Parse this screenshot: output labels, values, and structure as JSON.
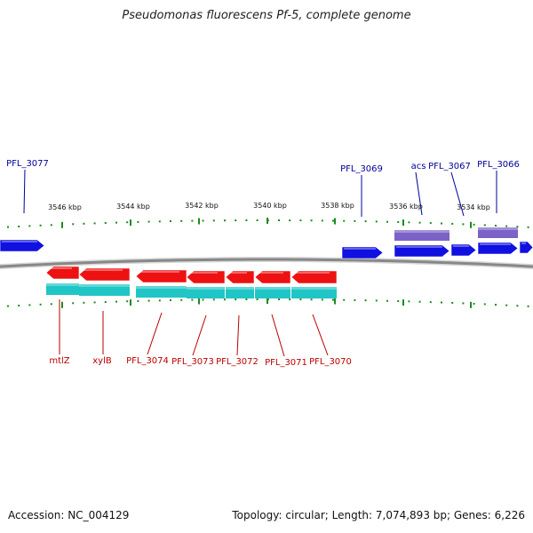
{
  "title": "Pseudomonas fluorescens Pf-5, complete genome",
  "footer": {
    "accession": "Accession: NC_004129",
    "summary": "Topology: circular; Length: 7,074,893 bp; Genes: 6,226"
  },
  "colors": {
    "forward_gene": "#1010e0",
    "reverse_gene": "#ee1111",
    "forward_cds": "#7a62c8",
    "reverse_cds": "#20c6c6",
    "backbone": "#888888",
    "tick": "#1e8a1e",
    "forward_label": "#000099",
    "reverse_label": "#bb0000"
  },
  "ticks": [
    {
      "label": "3546 kbp",
      "kbp": 3546
    },
    {
      "label": "3544 kbp",
      "kbp": 3544
    },
    {
      "label": "3542 kbp",
      "kbp": 3542
    },
    {
      "label": "3540 kbp",
      "kbp": 3540
    },
    {
      "label": "3538 kbp",
      "kbp": 3538
    },
    {
      "label": "3536 kbp",
      "kbp": 3536
    },
    {
      "label": "3534 kbp",
      "kbp": 3534
    }
  ],
  "forward_genes": [
    {
      "name": "PFL_3077",
      "label": "PFL_3077"
    },
    {
      "name": "PFL_3069",
      "label": "PFL_3069"
    },
    {
      "name": "acs",
      "label": "acs"
    },
    {
      "name": "PFL_3067",
      "label": "PFL_3067"
    },
    {
      "name": "PFL_3066",
      "label": "PFL_3066"
    }
  ],
  "reverse_genes": [
    {
      "name": "mtlZ",
      "label": "mtlZ"
    },
    {
      "name": "xylB",
      "label": "xylB"
    },
    {
      "name": "PFL_3074",
      "label": "PFL_3074"
    },
    {
      "name": "PFL_3073",
      "label": "PFL_3073"
    },
    {
      "name": "PFL_3072",
      "label": "PFL_3072"
    },
    {
      "name": "PFL_3071",
      "label": "PFL_3071"
    },
    {
      "name": "PFL_3070",
      "label": "PFL_3070"
    }
  ]
}
